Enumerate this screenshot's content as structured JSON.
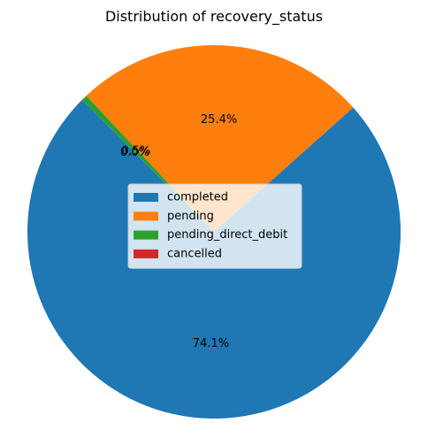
{
  "chart_data": {
    "type": "pie",
    "title": "Distribution of recovery_status",
    "slices": [
      {
        "label": "completed",
        "value": 74.1,
        "display": "74.1%",
        "color": "#1f77b4"
      },
      {
        "label": "pending",
        "value": 25.4,
        "display": "25.4%",
        "color": "#ff7f0e"
      },
      {
        "label": "pending_direct_debit",
        "value": 0.5,
        "display": "0.5%",
        "color": "#2ca02c"
      },
      {
        "label": "cancelled",
        "value": 0.0,
        "display": "0.0%",
        "color": "#d62728"
      }
    ],
    "legend": {
      "placement": "center",
      "entries": [
        "completed",
        "pending",
        "pending_direct_debit",
        "cancelled"
      ]
    },
    "start_angle_deg": 135,
    "direction": "counterclockwise"
  }
}
